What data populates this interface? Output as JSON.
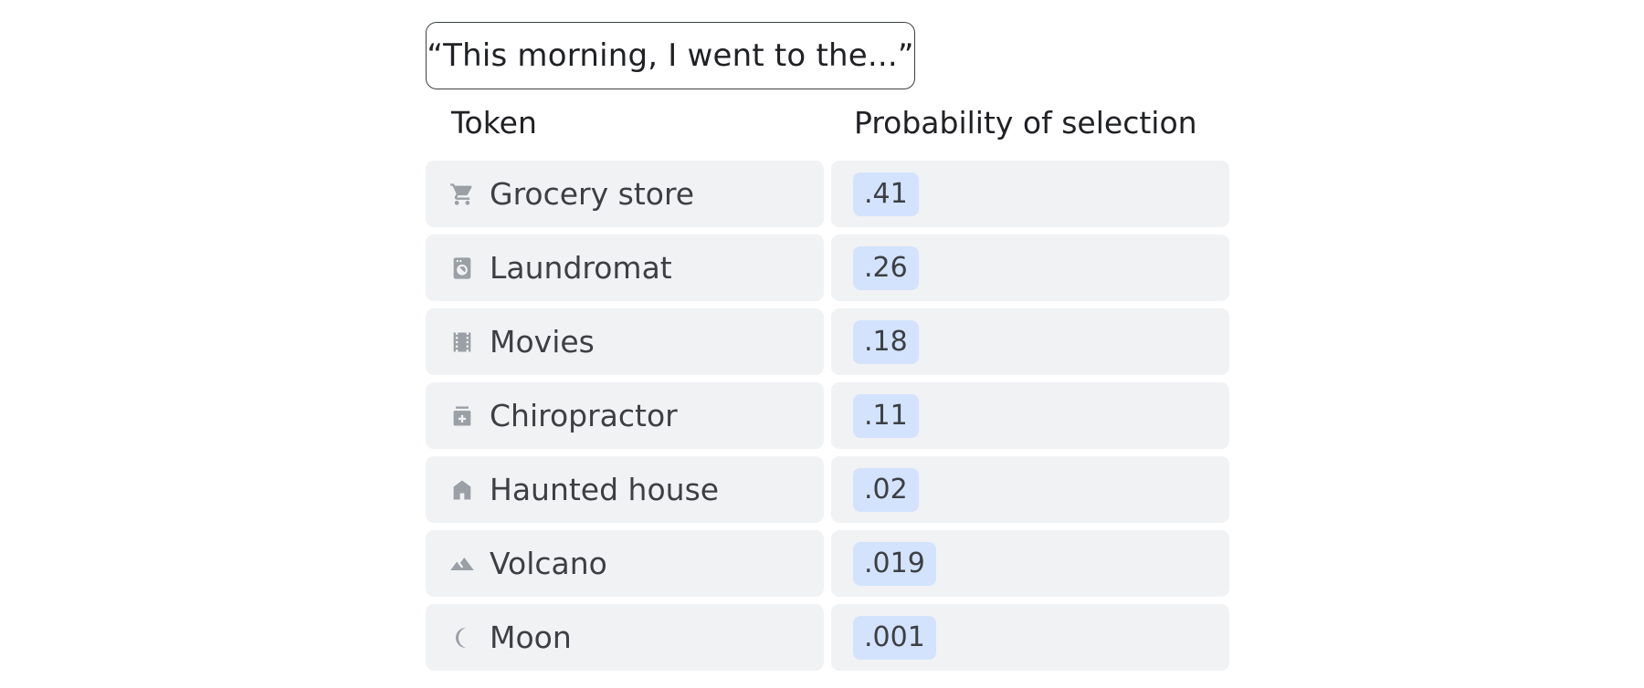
{
  "prompt": "“This morning, I went to the...”",
  "headers": {
    "token": "Token",
    "probability": "Probability of selection"
  },
  "colors": {
    "cell_background": "#f1f2f4",
    "badge_background": "#d3e3fd",
    "icon": "#9aa0a6",
    "text": "#3c4043"
  },
  "rows": [
    {
      "icon": "shopping-cart-icon",
      "label": "Grocery store",
      "prob": ".41"
    },
    {
      "icon": "washing-machine-icon",
      "label": "Laundromat",
      "prob": ".26"
    },
    {
      "icon": "film-strip-icon",
      "label": "Movies",
      "prob": ".18"
    },
    {
      "icon": "medication-icon",
      "label": "Chiropractor",
      "prob": ".11"
    },
    {
      "icon": "house-icon",
      "label": "Haunted house",
      "prob": ".02"
    },
    {
      "icon": "mountain-icon",
      "label": "Volcano",
      "prob": ".019"
    },
    {
      "icon": "crescent-moon-icon",
      "label": "Moon",
      "prob": ".001"
    }
  ]
}
